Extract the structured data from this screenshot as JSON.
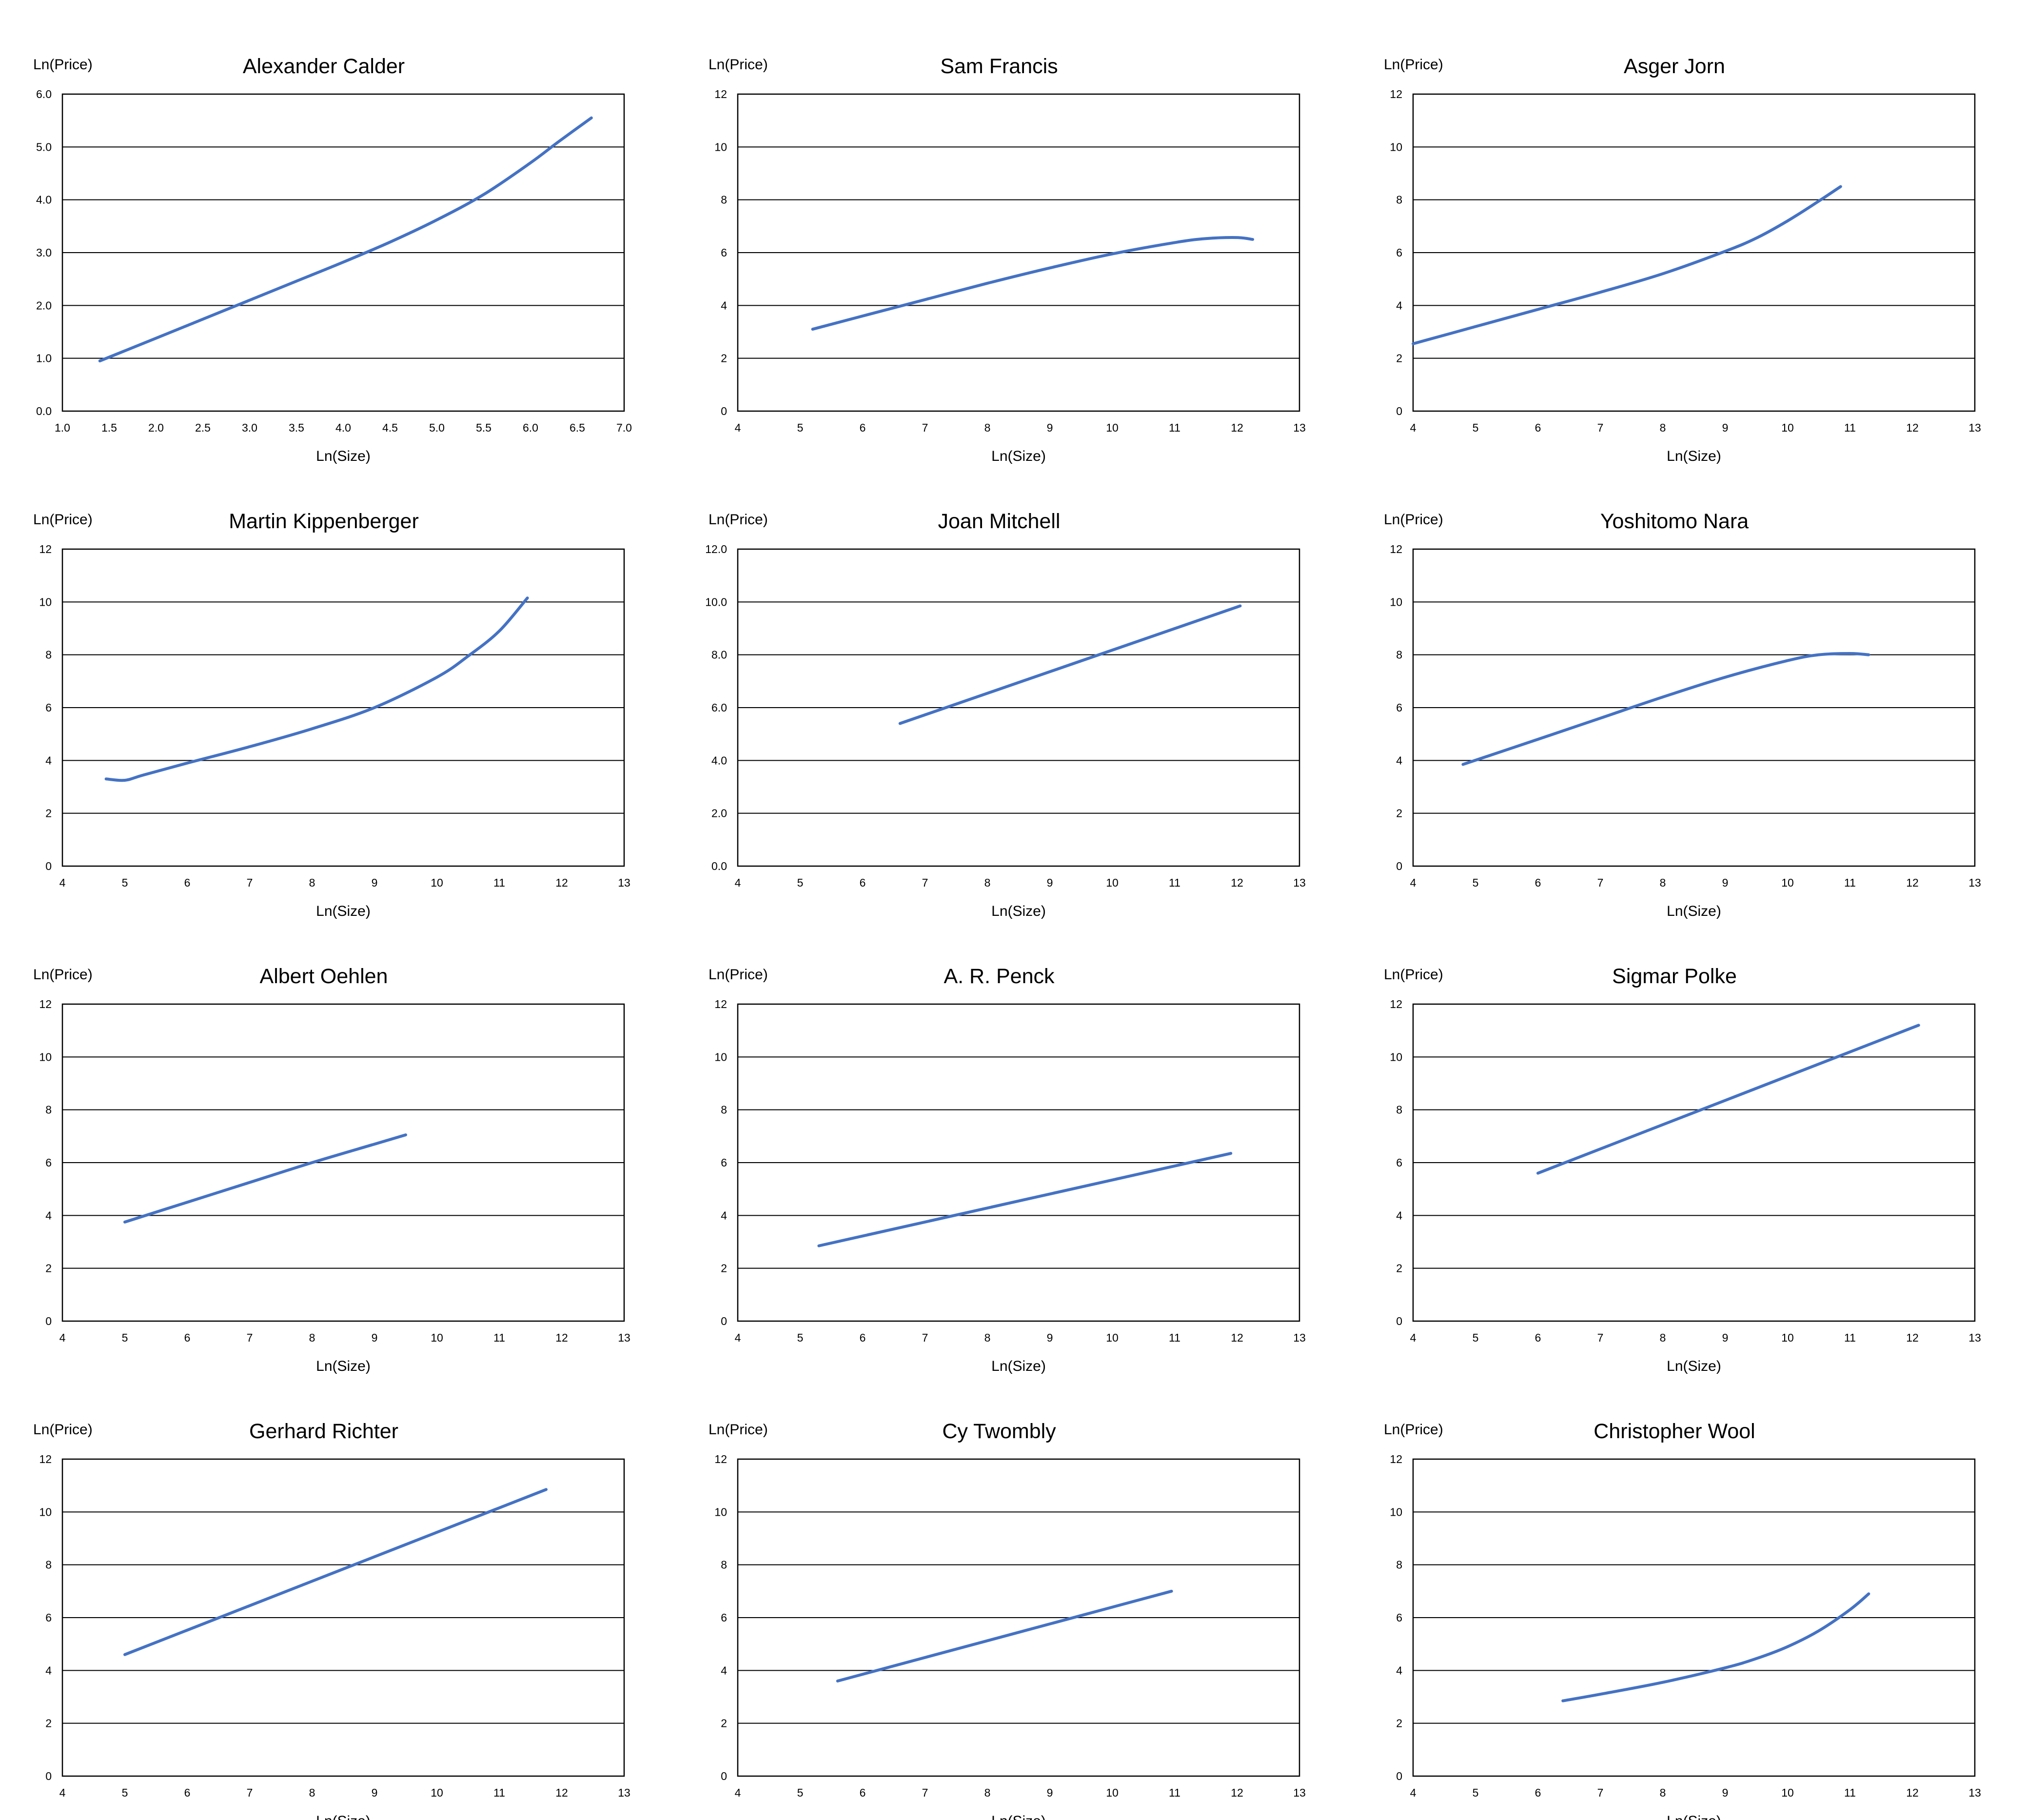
{
  "chart_data": [
    {
      "type": "line",
      "title": "Alexander Calder",
      "ylabel": "Ln(Price)",
      "xlabel": "Ln(Size)",
      "xlim": [
        1.0,
        7.0
      ],
      "ylim": [
        0.0,
        6.0
      ],
      "xticks": [
        "1.0",
        "1.5",
        "2.0",
        "2.5",
        "3.0",
        "3.5",
        "4.0",
        "4.5",
        "5.0",
        "5.5",
        "6.0",
        "6.5",
        "7.0"
      ],
      "yticks": [
        "0.0",
        "1.0",
        "2.0",
        "3.0",
        "4.0",
        "5.0",
        "6.0"
      ],
      "x": [
        1.4,
        2.0,
        2.5,
        3.0,
        3.5,
        4.0,
        4.5,
        5.0,
        5.5,
        6.0,
        6.3,
        6.65
      ],
      "y": [
        0.95,
        1.38,
        1.74,
        2.1,
        2.46,
        2.82,
        3.2,
        3.62,
        4.1,
        4.7,
        5.1,
        5.55
      ]
    },
    {
      "type": "line",
      "title": "Sam Francis",
      "ylabel": "Ln(Price)",
      "xlabel": "Ln(Size)",
      "xlim": [
        4,
        13
      ],
      "ylim": [
        0,
        12
      ],
      "xticks": [
        "4",
        "5",
        "6",
        "7",
        "8",
        "9",
        "10",
        "11",
        "12",
        "13"
      ],
      "yticks": [
        "0",
        "2",
        "4",
        "6",
        "8",
        "10",
        "12"
      ],
      "x": [
        5.2,
        6.0,
        7.0,
        8.0,
        9.0,
        10.0,
        11.0,
        11.5,
        12.0,
        12.25
      ],
      "y": [
        3.1,
        3.6,
        4.22,
        4.84,
        5.42,
        5.95,
        6.38,
        6.53,
        6.57,
        6.5
      ]
    },
    {
      "type": "line",
      "title": "Asger Jorn",
      "ylabel": "Ln(Price)",
      "xlabel": "Ln(Size)",
      "xlim": [
        4,
        13
      ],
      "ylim": [
        0,
        12
      ],
      "xticks": [
        "4",
        "5",
        "6",
        "7",
        "8",
        "9",
        "10",
        "11",
        "12",
        "13"
      ],
      "yticks": [
        "0",
        "2",
        "4",
        "6",
        "8",
        "10",
        "12"
      ],
      "x": [
        4.0,
        5.0,
        6.0,
        7.0,
        8.0,
        9.0,
        9.5,
        10.0,
        10.5,
        10.85
      ],
      "y": [
        2.55,
        3.2,
        3.85,
        4.5,
        5.2,
        6.05,
        6.55,
        7.2,
        7.95,
        8.5
      ]
    },
    {
      "type": "line",
      "title": "Martin Kippenberger",
      "ylabel": "Ln(Price)",
      "xlabel": "Ln(Size)",
      "xlim": [
        4,
        13
      ],
      "ylim": [
        0,
        12
      ],
      "xticks": [
        "4",
        "5",
        "6",
        "7",
        "8",
        "9",
        "10",
        "11",
        "12",
        "13"
      ],
      "yticks": [
        "0",
        "2",
        "4",
        "6",
        "8",
        "10",
        "12"
      ],
      "x": [
        4.7,
        5.0,
        5.3,
        6.0,
        7.0,
        8.0,
        9.0,
        10.0,
        10.5,
        11.0,
        11.45
      ],
      "y": [
        3.3,
        3.25,
        3.45,
        3.9,
        4.52,
        5.2,
        6.0,
        7.15,
        7.95,
        8.9,
        10.15
      ]
    },
    {
      "type": "line",
      "title": "Joan Mitchell",
      "ylabel": "Ln(Price)",
      "xlabel": "Ln(Size)",
      "xlim": [
        4,
        13
      ],
      "ylim": [
        0.0,
        12.0
      ],
      "xticks": [
        "4",
        "5",
        "6",
        "7",
        "8",
        "9",
        "10",
        "11",
        "12",
        "13"
      ],
      "yticks": [
        "0.0",
        "2.0",
        "4.0",
        "6.0",
        "8.0",
        "10.0",
        "12.0"
      ],
      "x": [
        6.6,
        12.05
      ],
      "y": [
        5.4,
        9.85
      ]
    },
    {
      "type": "line",
      "title": "Yoshitomo Nara",
      "ylabel": "Ln(Price)",
      "xlabel": "Ln(Size)",
      "xlim": [
        4,
        13
      ],
      "ylim": [
        0,
        12
      ],
      "xticks": [
        "4",
        "5",
        "6",
        "7",
        "8",
        "9",
        "10",
        "11",
        "12",
        "13"
      ],
      "yticks": [
        "0",
        "2",
        "4",
        "6",
        "8",
        "10",
        "12"
      ],
      "x": [
        4.8,
        6.0,
        7.0,
        8.0,
        9.0,
        10.0,
        10.5,
        11.0,
        11.3
      ],
      "y": [
        3.85,
        4.8,
        5.6,
        6.4,
        7.15,
        7.78,
        8.0,
        8.05,
        8.0
      ]
    },
    {
      "type": "line",
      "title": "Albert Oehlen",
      "ylabel": "Ln(Price)",
      "xlabel": "Ln(Size)",
      "xlim": [
        4,
        13
      ],
      "ylim": [
        0,
        12
      ],
      "xticks": [
        "4",
        "5",
        "6",
        "7",
        "8",
        "9",
        "10",
        "11",
        "12",
        "13"
      ],
      "yticks": [
        "0",
        "2",
        "4",
        "6",
        "8",
        "10",
        "12"
      ],
      "x": [
        5.0,
        6.0,
        7.0,
        8.0,
        9.0,
        9.5
      ],
      "y": [
        3.75,
        4.5,
        5.25,
        6.0,
        6.7,
        7.05
      ]
    },
    {
      "type": "line",
      "title": "A. R. Penck",
      "ylabel": "Ln(Price)",
      "xlabel": "Ln(Size)",
      "xlim": [
        4,
        13
      ],
      "ylim": [
        0,
        12
      ],
      "xticks": [
        "4",
        "5",
        "6",
        "7",
        "8",
        "9",
        "10",
        "11",
        "12",
        "13"
      ],
      "yticks": [
        "0",
        "2",
        "4",
        "6",
        "8",
        "10",
        "12"
      ],
      "x": [
        5.3,
        11.9
      ],
      "y": [
        2.85,
        6.35
      ]
    },
    {
      "type": "line",
      "title": "Sigmar Polke",
      "ylabel": "Ln(Price)",
      "xlabel": "Ln(Size)",
      "xlim": [
        4,
        13
      ],
      "ylim": [
        0,
        12
      ],
      "xticks": [
        "4",
        "5",
        "6",
        "7",
        "8",
        "9",
        "10",
        "11",
        "12",
        "13"
      ],
      "yticks": [
        "0",
        "2",
        "4",
        "6",
        "8",
        "10",
        "12"
      ],
      "x": [
        6.0,
        12.1
      ],
      "y": [
        5.6,
        11.2
      ]
    },
    {
      "type": "line",
      "title": "Gerhard Richter",
      "ylabel": "Ln(Price)",
      "xlabel": "Ln(Size)",
      "xlim": [
        4,
        13
      ],
      "ylim": [
        0,
        12
      ],
      "xticks": [
        "4",
        "5",
        "6",
        "7",
        "8",
        "9",
        "10",
        "11",
        "12",
        "13"
      ],
      "yticks": [
        "0",
        "2",
        "4",
        "6",
        "8",
        "10",
        "12"
      ],
      "x": [
        5.0,
        11.75
      ],
      "y": [
        4.6,
        10.85
      ]
    },
    {
      "type": "line",
      "title": "Cy Twombly",
      "ylabel": "Ln(Price)",
      "xlabel": "Ln(Size)",
      "xlim": [
        4,
        13
      ],
      "ylim": [
        0,
        12
      ],
      "xticks": [
        "4",
        "5",
        "6",
        "7",
        "8",
        "9",
        "10",
        "11",
        "12",
        "13"
      ],
      "yticks": [
        "0",
        "2",
        "4",
        "6",
        "8",
        "10",
        "12"
      ],
      "x": [
        5.6,
        10.95
      ],
      "y": [
        3.6,
        7.0
      ]
    },
    {
      "type": "line",
      "title": "Christopher Wool",
      "ylabel": "Ln(Price)",
      "xlabel": "Ln(Size)",
      "xlim": [
        4,
        13
      ],
      "ylim": [
        0,
        12
      ],
      "xticks": [
        "4",
        "5",
        "6",
        "7",
        "8",
        "9",
        "10",
        "11",
        "12",
        "13"
      ],
      "yticks": [
        "0",
        "2",
        "4",
        "6",
        "8",
        "10",
        "12"
      ],
      "x": [
        6.4,
        7.0,
        8.0,
        9.0,
        9.5,
        10.0,
        10.5,
        11.0,
        11.3
      ],
      "y": [
        2.85,
        3.1,
        3.55,
        4.1,
        4.45,
        4.9,
        5.5,
        6.3,
        6.9
      ]
    }
  ],
  "colors": {
    "series": "#4472C4",
    "grid": "#000000"
  }
}
